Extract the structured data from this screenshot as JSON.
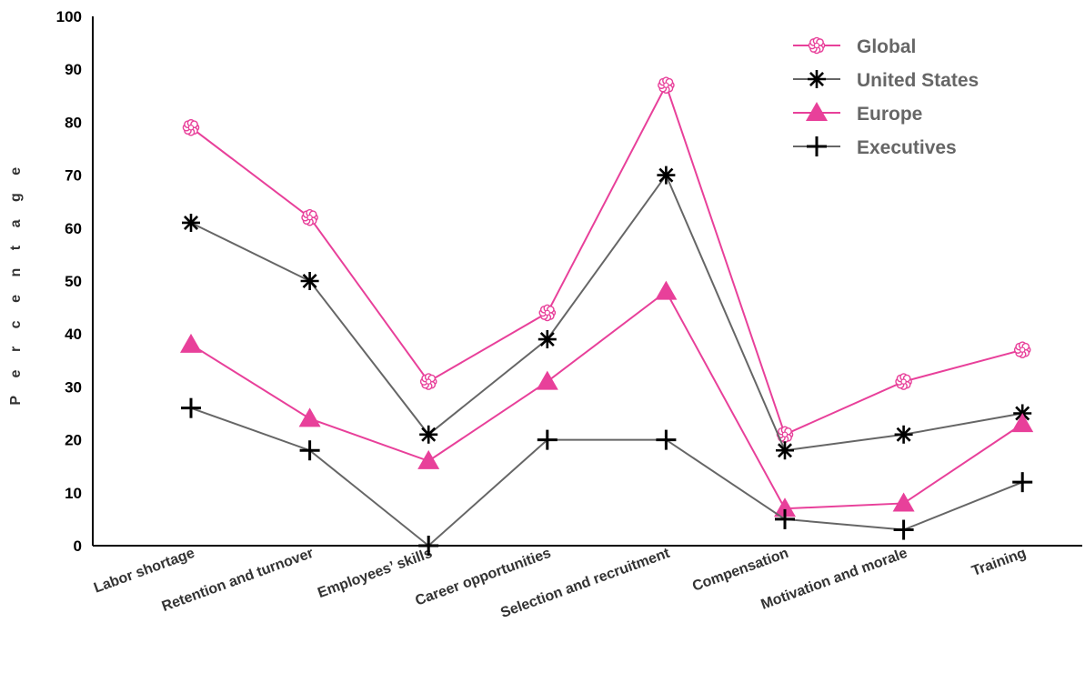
{
  "chart_data": {
    "type": "line",
    "title": "",
    "xlabel": "",
    "ylabel": "Percentage",
    "ylim": [
      0,
      100
    ],
    "yticks": [
      0,
      10,
      20,
      30,
      40,
      50,
      60,
      70,
      80,
      90,
      100
    ],
    "categories": [
      "Labor shortage",
      "Retention and turnover",
      "Employees’ skills",
      "Career opportunities",
      "Selection and recruitment",
      "Compensation",
      "Motivation and morale",
      "Training"
    ],
    "series": [
      {
        "name": "Global",
        "color": "#e8409a",
        "marker": "flower",
        "values": [
          79,
          62,
          31,
          44,
          87,
          21,
          31,
          37
        ]
      },
      {
        "name": "United States",
        "color": "#666666",
        "marker": "asterisk",
        "values": [
          61,
          50,
          21,
          39,
          70,
          18,
          21,
          25
        ]
      },
      {
        "name": "Europe",
        "color": "#e8409a",
        "marker": "triangle",
        "values": [
          38,
          24,
          16,
          31,
          48,
          7,
          8,
          23
        ]
      },
      {
        "name": "Executives",
        "color": "#666666",
        "marker": "plus",
        "values": [
          26,
          18,
          0,
          20,
          20,
          5,
          3,
          12
        ]
      }
    ],
    "legend": "top-right",
    "grid": false
  }
}
